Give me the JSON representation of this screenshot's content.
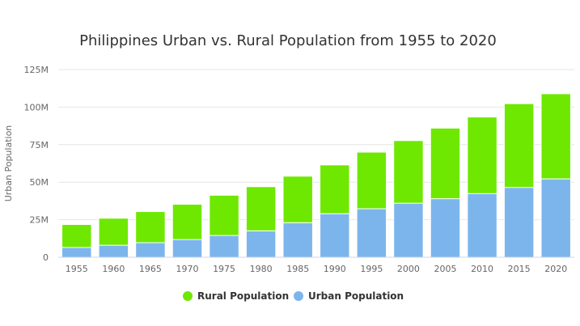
{
  "chart_data": {
    "type": "bar",
    "stacked": true,
    "title": "Philippines Urban vs. Rural Population from 1955 to 2020",
    "xlabel": "",
    "ylabel": "Urban Population",
    "ylim": [
      0,
      125000000
    ],
    "yticks": [
      {
        "value": 0,
        "label": "0"
      },
      {
        "value": 25000000,
        "label": "25M"
      },
      {
        "value": 50000000,
        "label": "50M"
      },
      {
        "value": 75000000,
        "label": "75M"
      },
      {
        "value": 100000000,
        "label": "100M"
      },
      {
        "value": 125000000,
        "label": "125M"
      }
    ],
    "categories": [
      "1955",
      "1960",
      "1965",
      "1970",
      "1975",
      "1980",
      "1985",
      "1990",
      "1995",
      "2000",
      "2005",
      "2010",
      "2015",
      "2020"
    ],
    "series": [
      {
        "name": "Urban Population",
        "color": "#7cb5ec",
        "values": [
          6500000,
          8000000,
          9700000,
          11800000,
          14500000,
          17600000,
          23000000,
          29000000,
          32300000,
          36000000,
          39000000,
          42400000,
          46500000,
          52200000
        ]
      },
      {
        "name": "Rural Population",
        "color": "#6ee800",
        "values": [
          15300000,
          18000000,
          20700000,
          23500000,
          26800000,
          29400000,
          31000000,
          32500000,
          37700000,
          41700000,
          47000000,
          51000000,
          55800000,
          56700000
        ]
      }
    ],
    "legend": {
      "position": "bottom-center",
      "order": [
        "Rural Population",
        "Urban Population"
      ]
    },
    "grid": true
  }
}
